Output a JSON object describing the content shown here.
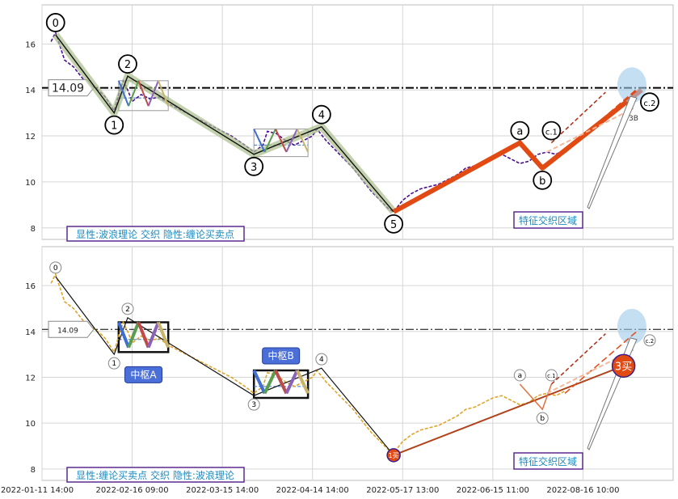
{
  "chart_data": [
    {
      "type": "line",
      "panel": "top",
      "ylim": [
        7.5,
        17.7
      ],
      "yticks": [
        "8",
        "10",
        "12",
        "14",
        "16"
      ],
      "grid": true,
      "ref_line": {
        "y": 14.09,
        "label": "14.09"
      },
      "price_series": {
        "color": "#4b0f8f",
        "points": [
          [
            2,
            16.1
          ],
          [
            3,
            16.5
          ],
          [
            5,
            15.3
          ],
          [
            7,
            15.0
          ],
          [
            9,
            14.5
          ],
          [
            11,
            14.2
          ],
          [
            13,
            13.9
          ],
          [
            14,
            13.7
          ],
          [
            15,
            13.4
          ],
          [
            16,
            13.1
          ],
          [
            17,
            13.8
          ],
          [
            18,
            14.4
          ],
          [
            19,
            14.0
          ],
          [
            20,
            13.5
          ],
          [
            22,
            13.8
          ],
          [
            24,
            13.6
          ],
          [
            26,
            13.7
          ],
          [
            28,
            13.4
          ],
          [
            30,
            13.2
          ],
          [
            33,
            12.9
          ],
          [
            36,
            12.6
          ],
          [
            39,
            12.3
          ],
          [
            42,
            12.0
          ],
          [
            45,
            11.6
          ],
          [
            47,
            11.3
          ],
          [
            49,
            11.6
          ],
          [
            50,
            12.2
          ],
          [
            52,
            12.1
          ],
          [
            54,
            11.8
          ],
          [
            56,
            11.6
          ],
          [
            58,
            11.8
          ],
          [
            60,
            12.0
          ],
          [
            61,
            12.3
          ],
          [
            63,
            11.8
          ],
          [
            65,
            11.4
          ],
          [
            67,
            11.0
          ],
          [
            69,
            10.6
          ],
          [
            71,
            10.1
          ],
          [
            73,
            9.6
          ],
          [
            75,
            9.2
          ],
          [
            77,
            8.8
          ],
          [
            78,
            8.7
          ],
          [
            80,
            9.2
          ],
          [
            82,
            9.5
          ],
          [
            84,
            9.7
          ],
          [
            86,
            9.8
          ],
          [
            88,
            9.9
          ],
          [
            90,
            10.1
          ],
          [
            92,
            10.3
          ],
          [
            94,
            10.6
          ],
          [
            96,
            10.7
          ],
          [
            98,
            10.9
          ],
          [
            100,
            11.1
          ],
          [
            102,
            11.2
          ],
          [
            104,
            11.0
          ],
          [
            106,
            10.8
          ],
          [
            108,
            10.9
          ],
          [
            110,
            11.2
          ],
          [
            112,
            11.3
          ],
          [
            114,
            11.2
          ],
          [
            116,
            11.4
          ]
        ]
      },
      "wave_points": [
        {
          "label": "0",
          "x": 3,
          "y": 16.4
        },
        {
          "label": "1",
          "x": 16,
          "y": 13.0
        },
        {
          "label": "2",
          "x": 19,
          "y": 14.6
        },
        {
          "label": "3",
          "x": 47,
          "y": 11.2
        },
        {
          "label": "4",
          "x": 62,
          "y": 12.4
        },
        {
          "label": "5",
          "x": 78,
          "y": 8.7
        },
        {
          "label": "a",
          "x": 106,
          "y": 11.7
        },
        {
          "label": "b",
          "x": 111,
          "y": 10.6
        },
        {
          "label": "c.1",
          "x": 113,
          "y": 11.7
        },
        {
          "label": "c.2",
          "x": 133,
          "y": 14.0
        }
      ],
      "zones": [
        {
          "name": "",
          "x0": 17,
          "x1": 28,
          "y0": 13.1,
          "y1": 14.4
        },
        {
          "name": "",
          "x0": 47,
          "x1": 59,
          "y0": 11.1,
          "y1": 12.3
        }
      ],
      "sub_label": "3B",
      "feature_label": "特征交织区域",
      "legend_caption": "显性:波浪理论 交织 隐性:缠论买卖点"
    },
    {
      "type": "line",
      "panel": "bottom",
      "ylim": [
        7.5,
        17.7
      ],
      "yticks": [
        "8",
        "10",
        "12",
        "14",
        "16"
      ],
      "grid": true,
      "ref_line": {
        "y": 14.09,
        "label": "14.09"
      },
      "price_series": {
        "color": "#e0a428",
        "points": [
          [
            2,
            16.1
          ],
          [
            3,
            16.5
          ],
          [
            5,
            15.3
          ],
          [
            7,
            15.0
          ],
          [
            9,
            14.5
          ],
          [
            11,
            14.2
          ],
          [
            13,
            13.9
          ],
          [
            14,
            13.7
          ],
          [
            15,
            13.4
          ],
          [
            16,
            13.1
          ],
          [
            17,
            13.8
          ],
          [
            18,
            14.4
          ],
          [
            19,
            14.0
          ],
          [
            20,
            13.5
          ],
          [
            22,
            13.8
          ],
          [
            24,
            13.6
          ],
          [
            26,
            13.7
          ],
          [
            28,
            13.4
          ],
          [
            30,
            13.2
          ],
          [
            33,
            12.9
          ],
          [
            36,
            12.6
          ],
          [
            39,
            12.3
          ],
          [
            42,
            12.0
          ],
          [
            45,
            11.6
          ],
          [
            47,
            11.3
          ],
          [
            49,
            11.6
          ],
          [
            50,
            12.2
          ],
          [
            52,
            12.1
          ],
          [
            54,
            11.8
          ],
          [
            56,
            11.6
          ],
          [
            58,
            11.8
          ],
          [
            60,
            12.0
          ],
          [
            61,
            12.3
          ],
          [
            63,
            11.8
          ],
          [
            65,
            11.4
          ],
          [
            67,
            11.0
          ],
          [
            69,
            10.6
          ],
          [
            71,
            10.1
          ],
          [
            73,
            9.6
          ],
          [
            75,
            9.2
          ],
          [
            77,
            8.8
          ],
          [
            78,
            8.7
          ],
          [
            80,
            9.2
          ],
          [
            82,
            9.5
          ],
          [
            84,
            9.7
          ],
          [
            86,
            9.8
          ],
          [
            88,
            9.9
          ],
          [
            90,
            10.1
          ],
          [
            92,
            10.3
          ],
          [
            94,
            10.6
          ],
          [
            96,
            10.7
          ],
          [
            98,
            10.9
          ],
          [
            100,
            11.1
          ],
          [
            102,
            11.2
          ],
          [
            104,
            11.0
          ],
          [
            106,
            10.8
          ],
          [
            108,
            10.9
          ],
          [
            110,
            11.2
          ],
          [
            112,
            11.3
          ],
          [
            114,
            11.2
          ],
          [
            116,
            11.4
          ]
        ]
      },
      "wave_points": [
        {
          "label": "0",
          "x": 3,
          "y": 16.4
        },
        {
          "label": "1",
          "x": 16,
          "y": 13.0
        },
        {
          "label": "2",
          "x": 19,
          "y": 14.6
        },
        {
          "label": "3",
          "x": 47,
          "y": 11.2
        },
        {
          "label": "4",
          "x": 62,
          "y": 12.4
        },
        {
          "label": "a",
          "x": 106,
          "y": 11.7
        },
        {
          "label": "b",
          "x": 111,
          "y": 10.6
        },
        {
          "label": "c.1",
          "x": 113,
          "y": 11.7
        },
        {
          "label": "c.2",
          "x": 133,
          "y": 14.0
        }
      ],
      "zones": [
        {
          "name": "中枢A",
          "x0": 17,
          "x1": 28,
          "y0": 13.1,
          "y1": 14.4
        },
        {
          "name": "中枢B",
          "x0": 47,
          "x1": 59,
          "y0": 11.1,
          "y1": 12.3
        }
      ],
      "buy_points": [
        {
          "label": "1买",
          "x": 78,
          "y": 8.6
        },
        {
          "label": "3买",
          "x": 129,
          "y": 12.5
        }
      ],
      "feature_label": "特征交织区域",
      "legend_caption": "显性:缠论买卖点 交织 隐性:波浪理论"
    }
  ],
  "x_ticks": [
    "2022-01-11 14:00",
    "2022-02-16 09:00",
    "2022-03-15 14:00",
    "2022-04-14 14:00",
    "2022-05-17 13:00",
    "2022-06-15 11:00",
    "2022-08-16 10:00"
  ]
}
